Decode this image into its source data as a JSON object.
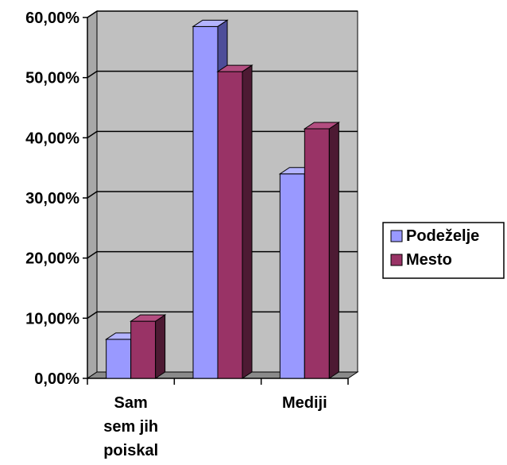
{
  "chart_data": {
    "type": "bar",
    "categories": [
      [
        "Sam",
        "sem jih",
        "poiskal"
      ],
      [
        ""
      ],
      [
        "Mediji"
      ]
    ],
    "series": [
      {
        "name": "Podeželje",
        "values": [
          6.5,
          58.5,
          34.0
        ],
        "color": "#9999ff",
        "side_color": "#4d4d99",
        "top_color": "#b3b3ff"
      },
      {
        "name": "Mesto",
        "values": [
          9.5,
          51.0,
          41.5
        ],
        "color": "#993366",
        "side_color": "#4d1a33",
        "top_color": "#b34d80"
      }
    ],
    "y_ticks": [
      "0,00%",
      "10,00%",
      "20,00%",
      "30,00%",
      "40,00%",
      "50,00%",
      "60,00%"
    ],
    "ylim": [
      0,
      60
    ],
    "grid": true,
    "legend_position": "right",
    "plot_background": "#c0c0c0"
  }
}
